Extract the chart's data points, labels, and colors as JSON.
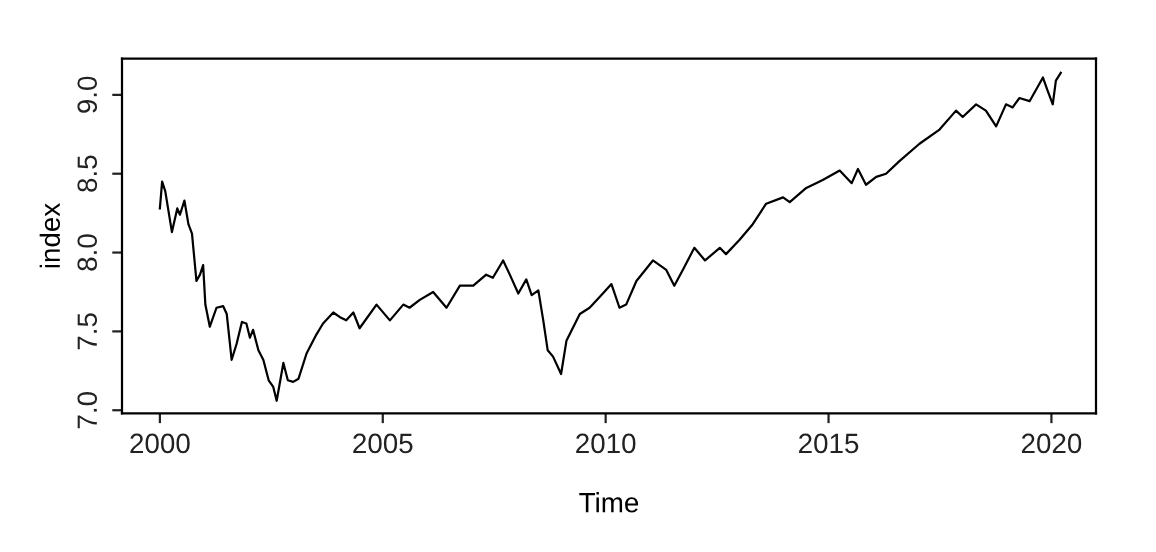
{
  "chart_data": {
    "type": "line",
    "xlabel": "Time",
    "ylabel": "index",
    "x": [
      2000.0,
      2000.05,
      2000.12,
      2000.27,
      2000.39,
      2000.45,
      2000.55,
      2000.64,
      2000.72,
      2000.82,
      2000.9,
      2000.97,
      2001.02,
      2001.12,
      2001.27,
      2001.42,
      2001.5,
      2001.61,
      2001.72,
      2001.84,
      2001.94,
      2002.02,
      2002.09,
      2002.21,
      2002.32,
      2002.44,
      2002.54,
      2002.62,
      2002.77,
      2002.87,
      2002.99,
      2003.11,
      2003.29,
      2003.51,
      2003.66,
      2003.89,
      2004.04,
      2004.18,
      2004.34,
      2004.48,
      2004.86,
      2005.16,
      2005.46,
      2005.6,
      2005.83,
      2006.13,
      2006.43,
      2006.73,
      2007.03,
      2007.32,
      2007.47,
      2007.7,
      2007.85,
      2008.04,
      2008.22,
      2008.34,
      2008.49,
      2008.6,
      2008.7,
      2008.82,
      2009.0,
      2009.12,
      2009.42,
      2009.64,
      2009.87,
      2010.13,
      2010.31,
      2010.46,
      2010.69,
      2011.06,
      2011.36,
      2011.54,
      2011.73,
      2011.99,
      2012.23,
      2012.56,
      2012.7,
      2013.0,
      2013.3,
      2013.6,
      2013.98,
      2014.13,
      2014.5,
      2014.87,
      2015.25,
      2015.52,
      2015.66,
      2015.84,
      2016.07,
      2016.29,
      2016.59,
      2017.04,
      2017.49,
      2017.86,
      2018.01,
      2018.31,
      2018.53,
      2018.76,
      2018.98,
      2019.13,
      2019.28,
      2019.51,
      2019.81,
      2019.91,
      2020.03,
      2020.1,
      2020.21
    ],
    "series": [
      {
        "color": "#000000",
        "values": [
          8.28,
          8.45,
          8.39,
          8.13,
          8.28,
          8.24,
          8.33,
          8.18,
          8.12,
          7.82,
          7.86,
          7.92,
          7.67,
          7.53,
          7.65,
          7.66,
          7.61,
          7.32,
          7.42,
          7.56,
          7.55,
          7.46,
          7.51,
          7.38,
          7.32,
          7.19,
          7.15,
          7.06,
          7.3,
          7.19,
          7.18,
          7.2,
          7.36,
          7.48,
          7.55,
          7.62,
          7.59,
          7.57,
          7.62,
          7.52,
          7.67,
          7.57,
          7.67,
          7.65,
          7.7,
          7.75,
          7.65,
          7.79,
          7.79,
          7.86,
          7.84,
          7.95,
          7.86,
          7.74,
          7.83,
          7.73,
          7.76,
          7.57,
          7.38,
          7.34,
          7.23,
          7.44,
          7.61,
          7.65,
          7.72,
          7.8,
          7.65,
          7.67,
          7.82,
          7.95,
          7.89,
          7.79,
          7.89,
          8.03,
          7.95,
          8.03,
          7.99,
          8.08,
          8.18,
          8.31,
          8.35,
          8.32,
          8.41,
          8.46,
          8.52,
          8.44,
          8.53,
          8.43,
          8.48,
          8.5,
          8.58,
          8.69,
          8.78,
          8.9,
          8.86,
          8.94,
          8.9,
          8.8,
          8.94,
          8.92,
          8.98,
          8.96,
          9.11,
          9.03,
          8.94,
          9.09,
          9.14
        ]
      }
    ],
    "xlim": [
      1999.15,
      2021.0
    ],
    "xticks": [
      2000,
      2005,
      2010,
      2015,
      2020
    ],
    "ylim": [
      6.98,
      9.23
    ],
    "yticks": [
      {
        "value": 7.0,
        "label": "7.0"
      },
      {
        "value": 7.5,
        "label": "7.5"
      },
      {
        "value": 8.0,
        "label": "8.0"
      },
      {
        "value": 8.5,
        "label": "8.5"
      },
      {
        "value": 9.0,
        "label": "9.0"
      }
    ],
    "grid": false,
    "legend": false
  }
}
